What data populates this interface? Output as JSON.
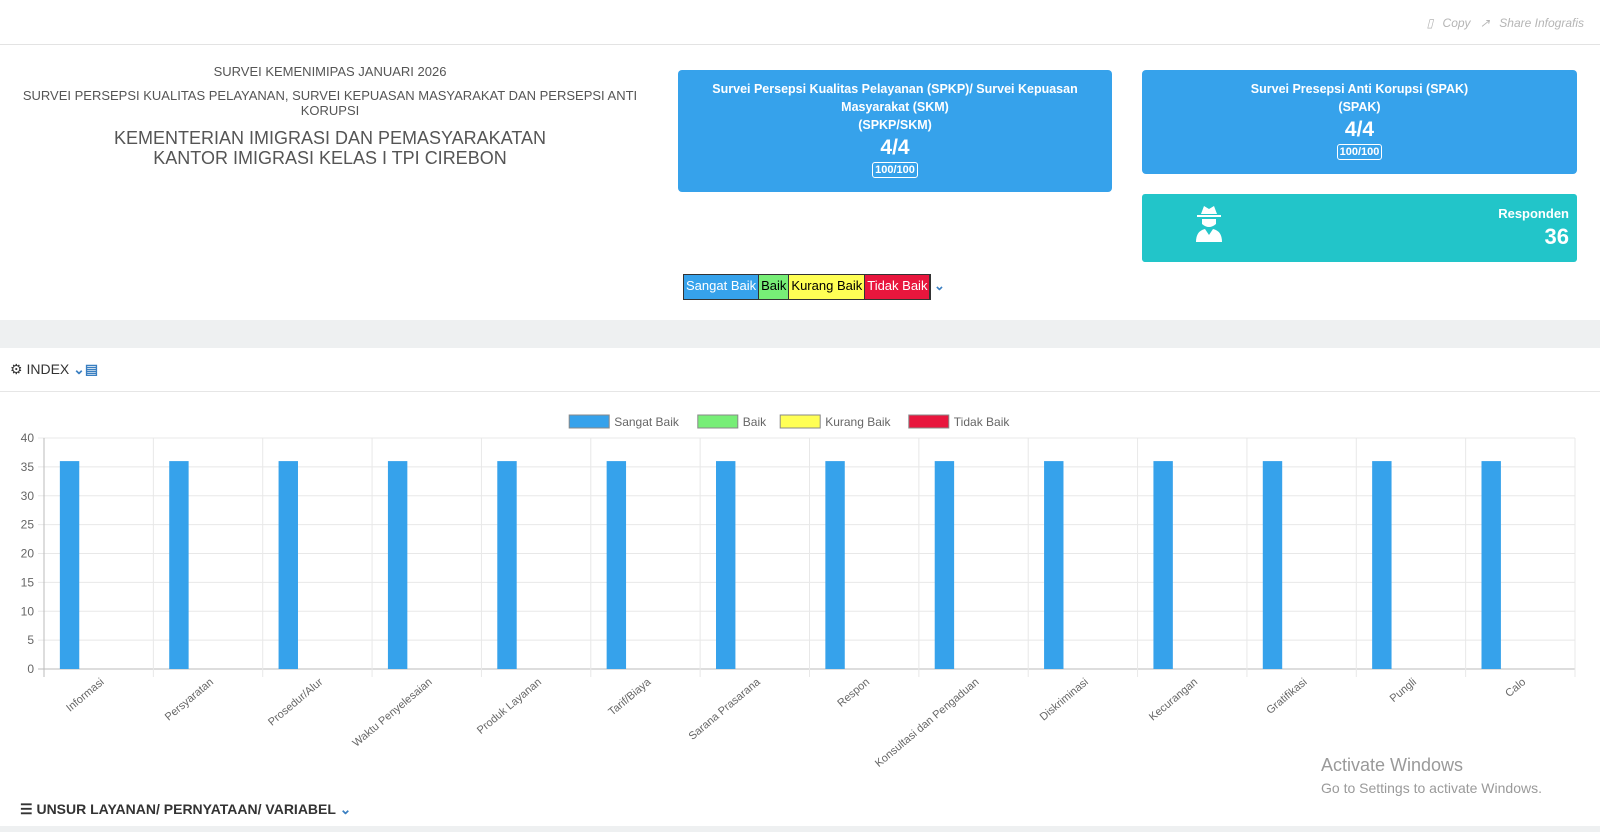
{
  "toolbar": {
    "copy": "Copy",
    "share": "Share Infografis"
  },
  "header": {
    "survey": "SURVEI KEMENIMIPAS JANUARI 2026",
    "subtitle": "SURVEI PERSEPSI KUALITAS PELAYANAN, SURVEI KEPUASAN MASYARAKAT DAN PERSEPSI ANTI KORUPSI",
    "org": "KEMENTERIAN IMIGRASI DAN PEMASYARAKATAN",
    "office": "KANTOR IMIGRASI KELAS I TPI CIREBON"
  },
  "cards": [
    {
      "title": "Survei Persepsi Kualitas Pelayanan (SPKP)/ Survei Kepuasan Masyarakat (SKM)",
      "code": "(SPKP/SKM)",
      "score": "4/4",
      "index": "100/100"
    },
    {
      "title": "Survei Presepsi Anti Korupsi (SPAK)",
      "code": "(SPAK)",
      "score": "4/4",
      "index": "100/100"
    }
  ],
  "respondents": {
    "label": "Responden",
    "value": 36
  },
  "scale": [
    {
      "label": "Sangat Baik",
      "color": "#36a2eb"
    },
    {
      "label": "Baik",
      "color": "#77ee77"
    },
    {
      "label": "Kurang Baik",
      "color": "#ffff55"
    },
    {
      "label": "Tidak Baik",
      "color": "#e8163d"
    }
  ],
  "index_panel": {
    "title": "INDEX"
  },
  "chart_data": {
    "type": "bar",
    "categories": [
      "Informasi",
      "Persyaratan",
      "Prosedur/Alur",
      "Waktu Penyelesaian",
      "Produk Layanan",
      "Tarif/Biaya",
      "Sarana Prasarana",
      "Respon",
      "Konsultasi dan Pengaduan",
      "Diskriminasi",
      "Kecurangan",
      "Gratifikasi",
      "Pungli",
      "Calo"
    ],
    "series": [
      {
        "name": "Sangat Baik",
        "color": "#36a2eb",
        "values": [
          36,
          36,
          36,
          36,
          36,
          36,
          36,
          36,
          36,
          36,
          36,
          36,
          36,
          36
        ]
      },
      {
        "name": "Baik",
        "color": "#77ee77",
        "values": [
          0,
          0,
          0,
          0,
          0,
          0,
          0,
          0,
          0,
          0,
          0,
          0,
          0,
          0
        ]
      },
      {
        "name": "Kurang Baik",
        "color": "#ffff55",
        "values": [
          0,
          0,
          0,
          0,
          0,
          0,
          0,
          0,
          0,
          0,
          0,
          0,
          0,
          0
        ]
      },
      {
        "name": "Tidak Baik",
        "color": "#e8163d",
        "values": [
          0,
          0,
          0,
          0,
          0,
          0,
          0,
          0,
          0,
          0,
          0,
          0,
          0,
          0
        ]
      }
    ],
    "ylim": [
      0,
      40
    ],
    "yticks": [
      0,
      5,
      10,
      15,
      20,
      25,
      30,
      35,
      40
    ],
    "grid": true
  },
  "footer": {
    "title": "UNSUR LAYANAN/ PERNYATAAN/ VARIABEL"
  },
  "watermark": {
    "title": "Activate Windows",
    "subtitle": "Go to Settings to activate Windows."
  }
}
